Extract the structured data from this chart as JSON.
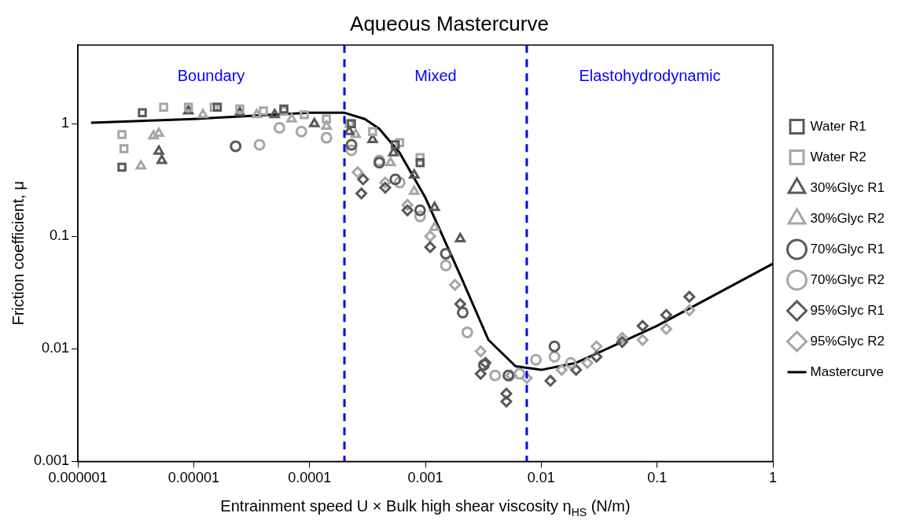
{
  "chart_data": {
    "type": "scatter",
    "title": "Aqueous Mastercurve",
    "xlabel": "Entrainment speed U × Bulk high shear viscosity η$_{HS}$ (N/m)",
    "ylabel": "Friction coefficient, μ",
    "log": "xy",
    "grid": false,
    "legend": "right",
    "xlim": [
      1e-06,
      1
    ],
    "xticks": [
      {
        "value": 1e-06,
        "label": "0.000001"
      },
      {
        "value": 1e-05,
        "label": "0.00001"
      },
      0.0001,
      0.001,
      0.01,
      0.1,
      1
    ],
    "ylim": [
      0.001,
      5
    ],
    "yticks": [
      0.001,
      0.01,
      0.1,
      1
    ],
    "ref_lines": [
      {
        "axis": "x",
        "value": 0.0002,
        "color": "#0000ff",
        "line_style": "dashed"
      },
      {
        "axis": "x",
        "value": 0.0075,
        "color": "#0000ff",
        "line_style": "dashed"
      }
    ],
    "annotations": [
      "Boundary",
      "Mixed",
      "Elastohydrodynamic"
    ],
    "series": [
      {
        "name": "Water R1",
        "color": "#595959",
        "marker": "square",
        "x": [
          2.4e-06,
          3.6e-06,
          1.6e-05,
          6e-05,
          0.00023,
          0.00055,
          0.0009
        ],
        "values": [
          0.41,
          1.25,
          1.4,
          1.35,
          1.0,
          0.65,
          0.45
        ]
      },
      {
        "name": "Water R2",
        "color": "#a6a6a6",
        "marker": "square",
        "x": [
          2.4e-06,
          2.5e-06,
          5.5e-06,
          9e-06,
          1.5e-05,
          2.5e-05,
          4e-05,
          6e-05,
          9e-05,
          0.00014,
          0.00022,
          0.00035,
          0.0006,
          0.0009
        ],
        "values": [
          0.8,
          0.6,
          1.4,
          1.4,
          1.4,
          1.35,
          1.3,
          1.3,
          1.2,
          1.1,
          1.0,
          0.85,
          0.68,
          0.5
        ]
      },
      {
        "name": "30%Glyc R1",
        "color": "#595959",
        "marker": "triangle",
        "x": [
          5e-06,
          5.3e-06,
          9e-06,
          2.5e-05,
          5e-05,
          0.00011,
          0.00022,
          0.00035,
          0.00053,
          0.0008,
          0.0012,
          0.002
        ],
        "values": [
          0.57,
          0.47,
          1.3,
          1.25,
          1.2,
          1.0,
          0.85,
          0.72,
          0.55,
          0.35,
          0.18,
          0.095
        ]
      },
      {
        "name": "30%Glyc R2",
        "color": "#a6a6a6",
        "marker": "triangle",
        "x": [
          3.5e-06,
          4.5e-06,
          5e-06,
          1.2e-05,
          3.5e-05,
          7e-05,
          0.00014,
          0.00025,
          0.0005,
          0.0008,
          0.0012
        ],
        "values": [
          0.42,
          0.78,
          0.82,
          1.2,
          1.2,
          1.1,
          0.95,
          0.8,
          0.45,
          0.25,
          0.12
        ]
      },
      {
        "name": "70%Glyc R1",
        "color": "#595959",
        "marker": "circle",
        "x": [
          2.3e-05,
          0.00023,
          0.0004,
          0.00055,
          0.0009,
          0.0015,
          0.0021,
          0.0032,
          0.0052,
          0.013
        ],
        "values": [
          0.63,
          0.65,
          0.45,
          0.32,
          0.17,
          0.07,
          0.021,
          0.0072,
          0.0058,
          0.0105
        ]
      },
      {
        "name": "70%Glyc R2",
        "color": "#a6a6a6",
        "marker": "circle",
        "x": [
          3.7e-05,
          5.5e-05,
          8.5e-05,
          0.00014,
          0.00023,
          0.0004,
          0.0006,
          0.0009,
          0.0015,
          0.0023,
          0.004,
          0.0065,
          0.009,
          0.013,
          0.018
        ],
        "values": [
          0.65,
          0.92,
          0.85,
          0.75,
          0.58,
          0.47,
          0.3,
          0.15,
          0.055,
          0.014,
          0.0058,
          0.006,
          0.008,
          0.0085,
          0.0075
        ]
      },
      {
        "name": "95%Glyc R1",
        "color": "#595959",
        "marker": "diamond",
        "x": [
          0.00028,
          0.00029,
          0.00045,
          0.0007,
          0.0011,
          0.002,
          0.003,
          0.0033,
          0.005,
          0.005,
          0.012,
          0.02,
          0.03,
          0.05,
          0.075,
          0.12,
          0.19
        ],
        "values": [
          0.24,
          0.32,
          0.27,
          0.17,
          0.08,
          0.025,
          0.006,
          0.0075,
          0.0034,
          0.004,
          0.0052,
          0.0065,
          0.0085,
          0.0115,
          0.016,
          0.02,
          0.029
        ]
      },
      {
        "name": "95%Glyc R2",
        "color": "#a6a6a6",
        "marker": "diamond",
        "x": [
          0.00026,
          0.00045,
          0.0007,
          0.0011,
          0.0018,
          0.003,
          0.0055,
          0.0075,
          0.015,
          0.025,
          0.03,
          0.05,
          0.075,
          0.12,
          0.19
        ],
        "values": [
          0.37,
          0.3,
          0.19,
          0.1,
          0.037,
          0.0095,
          0.0058,
          0.0055,
          0.0065,
          0.0075,
          0.0105,
          0.0125,
          0.012,
          0.015,
          0.022
        ]
      },
      {
        "name": "Mastercurve",
        "type": "line",
        "color": "#000000",
        "marker": "none",
        "line_style": "solid",
        "x": [
          1.3e-06,
          1e-05,
          0.0001,
          0.0002,
          0.0003,
          0.0004,
          0.0006,
          0.001,
          0.002,
          0.0035,
          0.006,
          0.01,
          0.02,
          0.1,
          1
        ],
        "values": [
          1.02,
          1.1,
          1.25,
          1.25,
          1.1,
          0.9,
          0.55,
          0.22,
          0.045,
          0.012,
          0.007,
          0.0065,
          0.0075,
          0.016,
          0.057
        ]
      }
    ]
  }
}
